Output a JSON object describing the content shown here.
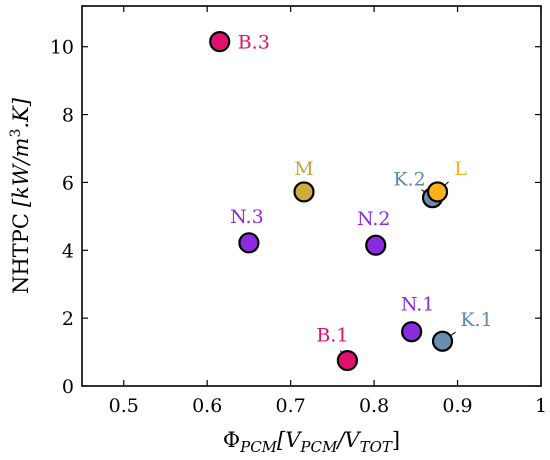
{
  "chart_data": {
    "type": "scatter",
    "xlabel": "Φ",
    "xlabel_sub": "PCM",
    "xlabel_rest_a": "[V",
    "xlabel_sub2": "PCM",
    "xlabel_rest_b": "/V",
    "xlabel_sub3": "TOT",
    "xlabel_rest_c": "]",
    "ylabel": "NHTPC",
    "ylabel_units_a": "[kW/m",
    "ylabel_units_sup": "3",
    "ylabel_units_b": ".K]",
    "xlim": [
      0.45,
      1.0
    ],
    "ylim": [
      0,
      11.2
    ],
    "xticks": [
      0.5,
      0.6,
      0.7,
      0.8,
      0.9,
      1.0
    ],
    "xtick_labels": [
      "0.5",
      "0.6",
      "0.7",
      "0.8",
      "0.9",
      "1"
    ],
    "yticks": [
      0,
      2,
      4,
      6,
      8,
      10
    ],
    "ytick_labels": [
      "0",
      "2",
      "4",
      "6",
      "8",
      "10"
    ],
    "points": [
      {
        "label": "B.3",
        "x": 0.615,
        "y": 10.15,
        "color": "#e0116e",
        "label_color": "#e0116e"
      },
      {
        "label": "M",
        "x": 0.716,
        "y": 5.72,
        "color": "#cfac3a",
        "label_color": "#c8a43c"
      },
      {
        "label": "N.3",
        "x": 0.65,
        "y": 4.22,
        "color": "#8a2be2",
        "label_color": "#8a2be2"
      },
      {
        "label": "N.2",
        "x": 0.802,
        "y": 4.15,
        "color": "#8a2be2",
        "label_color": "#8a2be2"
      },
      {
        "label": "K.2",
        "x": 0.87,
        "y": 5.55,
        "color": "#6a8fae",
        "label_color": "#5b87ad"
      },
      {
        "label": "L",
        "x": 0.876,
        "y": 5.72,
        "color": "#fbb117",
        "label_color": "#fbb117"
      },
      {
        "label": "N.1",
        "x": 0.845,
        "y": 1.6,
        "color": "#8a2be2",
        "label_color": "#8a2be2"
      },
      {
        "label": "K.1",
        "x": 0.882,
        "y": 1.32,
        "color": "#6a8fae",
        "label_color": "#5b87ad"
      },
      {
        "label": "B.1",
        "x": 0.768,
        "y": 0.75,
        "color": "#e0116e",
        "label_color": "#e0116e"
      }
    ]
  }
}
